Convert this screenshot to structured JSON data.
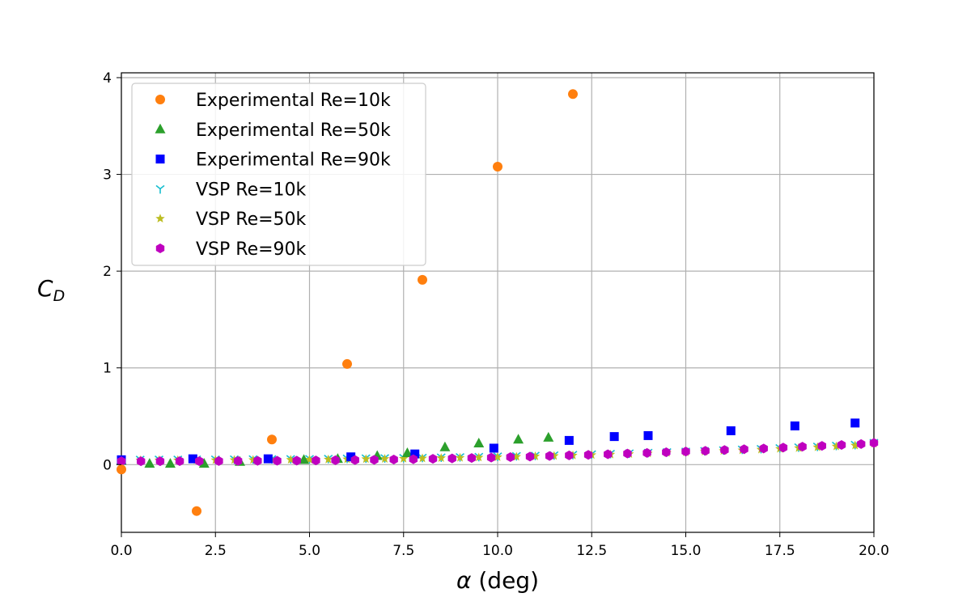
{
  "chart_data": {
    "type": "scatter",
    "title": "",
    "xlabel_symbol": "α",
    "xlabel_unit": " (deg)",
    "ylabel_main": "C",
    "ylabel_sub": "D",
    "xlim": [
      0,
      20
    ],
    "ylim": [
      -0.7,
      4.05
    ],
    "x_ticks": [
      0.0,
      2.5,
      5.0,
      7.5,
      10.0,
      12.5,
      15.0,
      17.5,
      20.0
    ],
    "x_tick_labels": [
      "0.0",
      "2.5",
      "5.0",
      "7.5",
      "10.0",
      "12.5",
      "15.0",
      "17.5",
      "20.0"
    ],
    "y_ticks": [
      0,
      1,
      2,
      3,
      4
    ],
    "y_tick_labels": [
      "0",
      "1",
      "2",
      "3",
      "4"
    ],
    "grid": true,
    "legend_position": "upper-left",
    "series": [
      {
        "name": "Experimental Re=10k",
        "marker": "circle",
        "color": "#ff7f0e",
        "x": [
          0.0,
          2.0,
          4.0,
          6.0,
          8.0,
          10.0,
          12.0
        ],
        "y": [
          -0.05,
          -0.48,
          0.26,
          1.04,
          1.91,
          3.08,
          3.83
        ]
      },
      {
        "name": "Experimental Re=50k",
        "marker": "triangle",
        "color": "#2ca02c",
        "x": [
          0.0,
          0.75,
          1.3,
          2.2,
          3.15,
          4.85,
          5.75,
          6.8,
          7.6,
          8.6,
          9.5,
          10.55,
          11.35
        ],
        "y": [
          0.04,
          0.01,
          0.01,
          0.01,
          0.03,
          0.05,
          0.06,
          0.09,
          0.12,
          0.18,
          0.22,
          0.26,
          0.28
        ]
      },
      {
        "name": "Experimental Re=90k",
        "marker": "square",
        "color": "#0000ff",
        "x": [
          0.0,
          1.9,
          3.9,
          6.1,
          7.8,
          9.9,
          11.9,
          13.1,
          14.0,
          16.2,
          17.9,
          19.5
        ],
        "y": [
          0.05,
          0.06,
          0.06,
          0.08,
          0.11,
          0.17,
          0.25,
          0.29,
          0.3,
          0.35,
          0.4,
          0.43
        ]
      },
      {
        "name": "VSP Re=10k",
        "marker": "tri-down",
        "color": "#17becf",
        "x": [
          0.0,
          0.5,
          1.0,
          1.5,
          2.0,
          2.5,
          3.0,
          3.5,
          4.0,
          4.5,
          5.0,
          5.5,
          6.0,
          6.5,
          7.0,
          7.5,
          8.0,
          8.5,
          9.0,
          9.5,
          10.0,
          10.5,
          11.0,
          11.5,
          12.0,
          12.5,
          13.0,
          13.5,
          14.0,
          14.5,
          15.0,
          15.5,
          16.0,
          16.5,
          17.0,
          17.5,
          18.0,
          18.5,
          19.0,
          19.5,
          20.0
        ],
        "y": [
          0.055,
          0.055,
          0.056,
          0.056,
          0.057,
          0.057,
          0.058,
          0.059,
          0.06,
          0.061,
          0.062,
          0.064,
          0.066,
          0.068,
          0.07,
          0.072,
          0.075,
          0.078,
          0.081,
          0.084,
          0.088,
          0.092,
          0.096,
          0.1,
          0.105,
          0.11,
          0.115,
          0.12,
          0.126,
          0.132,
          0.138,
          0.145,
          0.152,
          0.159,
          0.166,
          0.174,
          0.182,
          0.19,
          0.199,
          0.208,
          0.228
        ]
      },
      {
        "name": "VSP Re=50k",
        "marker": "star",
        "color": "#bcbd22",
        "x": [
          0.0,
          0.5,
          1.0,
          1.5,
          2.0,
          2.5,
          3.0,
          3.5,
          4.0,
          4.5,
          5.0,
          5.5,
          6.0,
          6.5,
          7.0,
          7.5,
          8.0,
          8.5,
          9.0,
          9.5,
          10.0,
          10.5,
          11.0,
          11.5,
          12.0,
          12.5,
          13.0,
          13.5,
          14.0,
          14.5,
          15.0,
          15.5,
          16.0,
          16.5,
          17.0,
          17.5,
          18.0,
          18.5,
          19.0,
          19.5,
          20.0
        ],
        "y": [
          0.045,
          0.045,
          0.045,
          0.046,
          0.046,
          0.047,
          0.048,
          0.049,
          0.05,
          0.051,
          0.052,
          0.054,
          0.056,
          0.058,
          0.06,
          0.062,
          0.065,
          0.068,
          0.071,
          0.074,
          0.078,
          0.082,
          0.086,
          0.09,
          0.095,
          0.1,
          0.105,
          0.11,
          0.116,
          0.122,
          0.128,
          0.135,
          0.142,
          0.149,
          0.156,
          0.164,
          0.172,
          0.18,
          0.189,
          0.198,
          0.218
        ]
      },
      {
        "name": "VSP Re=90k",
        "marker": "hexagon",
        "color": "#bf00bf",
        "x": [
          0.0,
          0.52,
          1.03,
          1.55,
          2.07,
          2.59,
          3.1,
          3.62,
          4.14,
          4.66,
          5.17,
          5.69,
          6.21,
          6.72,
          7.24,
          7.76,
          8.28,
          8.79,
          9.31,
          9.83,
          10.34,
          10.86,
          11.38,
          11.9,
          12.41,
          12.93,
          13.45,
          13.97,
          14.48,
          15.0,
          15.52,
          16.03,
          16.55,
          17.07,
          17.59,
          18.1,
          18.62,
          19.14,
          19.66,
          20.0
        ],
        "y": [
          0.035,
          0.035,
          0.035,
          0.036,
          0.036,
          0.037,
          0.038,
          0.039,
          0.04,
          0.041,
          0.043,
          0.045,
          0.047,
          0.05,
          0.053,
          0.056,
          0.06,
          0.064,
          0.068,
          0.073,
          0.078,
          0.083,
          0.089,
          0.095,
          0.101,
          0.107,
          0.114,
          0.121,
          0.128,
          0.135,
          0.143,
          0.151,
          0.159,
          0.167,
          0.176,
          0.185,
          0.194,
          0.203,
          0.213,
          0.224
        ]
      }
    ]
  }
}
